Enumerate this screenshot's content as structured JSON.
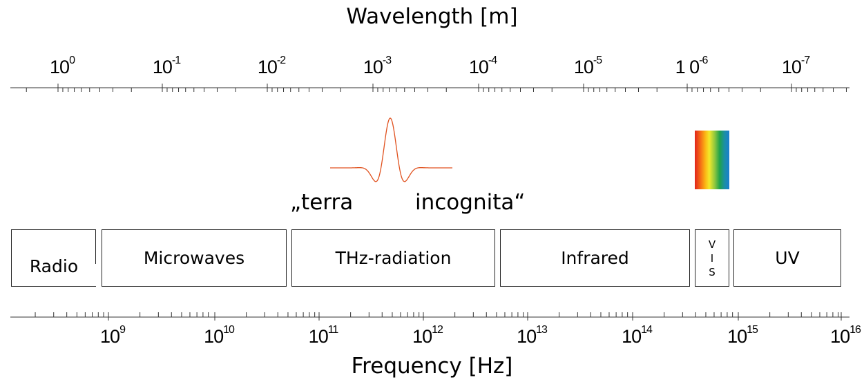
{
  "wavelength_axis": {
    "title": "Wavelength [m]",
    "labels": [
      {
        "base": "10",
        "exp": "0"
      },
      {
        "base": "10",
        "exp": "-1"
      },
      {
        "base": "10",
        "exp": "-2"
      },
      {
        "base": "10",
        "exp": "-3"
      },
      {
        "base": "10",
        "exp": "-4"
      },
      {
        "base": "10",
        "exp": "-5"
      },
      {
        "base": "1 0",
        "exp": "-6"
      },
      {
        "base": "10",
        "exp": "-7"
      }
    ]
  },
  "frequency_axis": {
    "title": "Frequency [Hz]",
    "labels": [
      {
        "base": "10",
        "exp": "9"
      },
      {
        "base": "10",
        "exp": "10"
      },
      {
        "base": "10",
        "exp": "11"
      },
      {
        "base": "10",
        "exp": "12"
      },
      {
        "base": "10",
        "exp": "13"
      },
      {
        "base": "10",
        "exp": "14"
      },
      {
        "base": "10",
        "exp": "15"
      },
      {
        "base": "10",
        "exp": "16"
      }
    ]
  },
  "bands": {
    "radio": "Radio",
    "microwaves": "Microwaves",
    "thz": "THz-radiation",
    "infrared": "Infrared",
    "vis": [
      "V",
      "I",
      "S"
    ],
    "uv": "UV"
  },
  "annotation": {
    "left": "„terra",
    "right": "incognita“"
  },
  "colors": {
    "pulse": "#e0511e",
    "axis": "#333333",
    "band_border": "#222222"
  }
}
